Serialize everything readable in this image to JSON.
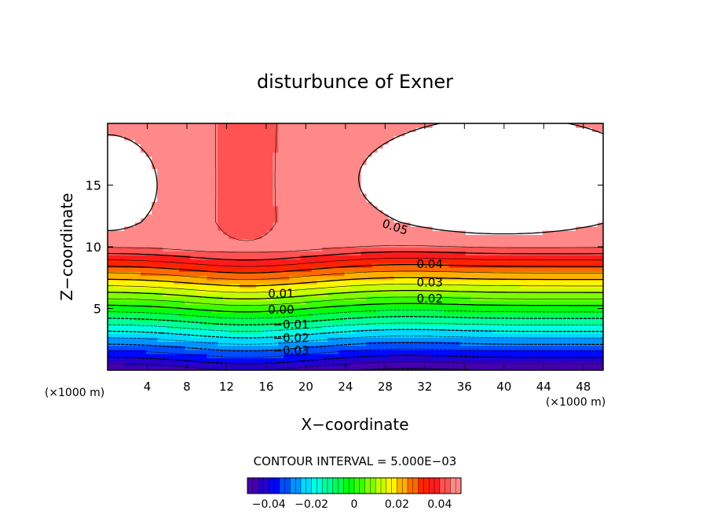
{
  "chart_data": {
    "type": "contour",
    "title": "disturbunce of Exner",
    "xlabel": "X−coordinate",
    "ylabel": "Z−coordinate",
    "x_unit": "(×1000 m)",
    "y_unit": "(×1000 m)",
    "xlim": [
      0,
      50
    ],
    "ylim": [
      0,
      20
    ],
    "x_ticks": [
      {
        "value": 4,
        "label": "4"
      },
      {
        "value": 8,
        "label": "8"
      },
      {
        "value": 12,
        "label": "12"
      },
      {
        "value": 16,
        "label": "16"
      },
      {
        "value": 20,
        "label": "20"
      },
      {
        "value": 24,
        "label": "24"
      },
      {
        "value": 28,
        "label": "28"
      },
      {
        "value": 32,
        "label": "32"
      },
      {
        "value": 36,
        "label": "36"
      },
      {
        "value": 40,
        "label": "40"
      },
      {
        "value": 44,
        "label": "44"
      },
      {
        "value": 48,
        "label": "48"
      }
    ],
    "y_ticks": [
      {
        "value": 5,
        "label": "5"
      },
      {
        "value": 10,
        "label": "10"
      },
      {
        "value": 15,
        "label": "15"
      }
    ],
    "contour_interval_text": "CONTOUR INTERVAL =  5.000E−03",
    "contour_interval": 0.005,
    "value_range": [
      -0.05,
      0.05
    ],
    "contour_labels": [
      {
        "text": "0.05",
        "x": 29,
        "z": 11.6,
        "angle": 18
      },
      {
        "text": "0.04",
        "x": 32.5,
        "z": 8.6,
        "angle": 0
      },
      {
        "text": "0.03",
        "x": 32.5,
        "z": 7.1,
        "angle": 0
      },
      {
        "text": "0.02",
        "x": 32.5,
        "z": 5.8,
        "angle": 0
      },
      {
        "text": "0.01",
        "x": 17.5,
        "z": 6.2,
        "angle": 0
      },
      {
        "text": "0.00",
        "x": 17.5,
        "z": 4.9,
        "angle": 0
      },
      {
        "text": "−0.01",
        "x": 18.5,
        "z": 3.7,
        "angle": 0
      },
      {
        "text": "−0.02",
        "x": 18.5,
        "z": 2.6,
        "angle": 0
      },
      {
        "text": "−0.03",
        "x": 18.5,
        "z": 1.6,
        "angle": 0
      }
    ],
    "colorbar": {
      "ticks": [
        {
          "value": -0.04,
          "label": "−0.04"
        },
        {
          "value": -0.02,
          "label": "−0.02"
        },
        {
          "value": 0,
          "label": "0"
        },
        {
          "value": 0.02,
          "label": "0.02"
        },
        {
          "value": 0.04,
          "label": "0.04"
        }
      ]
    }
  }
}
